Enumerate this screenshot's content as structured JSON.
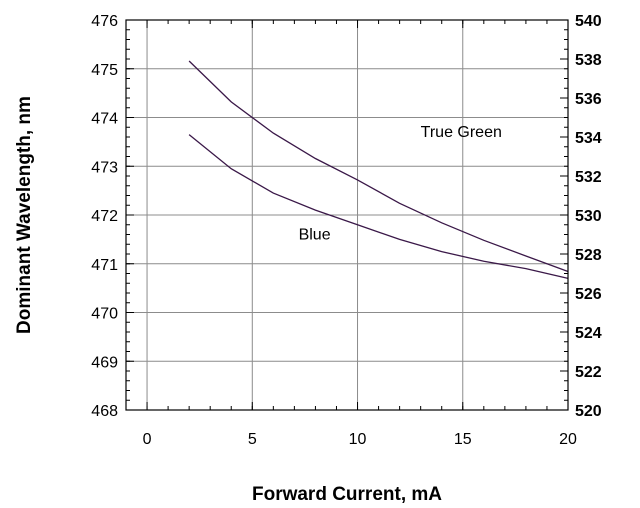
{
  "chart_data": {
    "type": "line",
    "xlabel": "Forward Current, mA",
    "ylabel": "Dominant Wavelength, nm",
    "xlim": [
      -1,
      20
    ],
    "ylim": [
      468,
      476
    ],
    "y2lim": [
      520,
      540
    ],
    "xticks": [
      0,
      5,
      10,
      15,
      20
    ],
    "yticks": [
      468,
      469,
      470,
      471,
      472,
      473,
      474,
      475,
      476
    ],
    "y2ticks": [
      520,
      522,
      524,
      526,
      528,
      530,
      532,
      534,
      536,
      538,
      540
    ],
    "grid": true,
    "series": [
      {
        "name": "True Green",
        "axis": "right",
        "color": "#3a1848",
        "x": [
          2,
          4,
          6,
          8,
          10,
          12,
          14,
          16,
          18,
          20
        ],
        "y": [
          537.9,
          535.8,
          534.2,
          532.9,
          531.8,
          530.6,
          529.6,
          528.7,
          527.9,
          527.1
        ]
      },
      {
        "name": "Blue",
        "axis": "left",
        "color": "#3a1848",
        "x": [
          2,
          4,
          6,
          8,
          10,
          12,
          14,
          16,
          18,
          20
        ],
        "y": [
          473.65,
          472.95,
          472.45,
          472.1,
          471.8,
          471.5,
          471.25,
          471.05,
          470.9,
          470.7
        ]
      }
    ],
    "annotations": [
      {
        "text": "True Green",
        "series": "True Green",
        "x": 13.0,
        "y": 473.6
      },
      {
        "text": "Blue",
        "series": "Blue",
        "x": 7.2,
        "y": 471.5
      }
    ]
  }
}
